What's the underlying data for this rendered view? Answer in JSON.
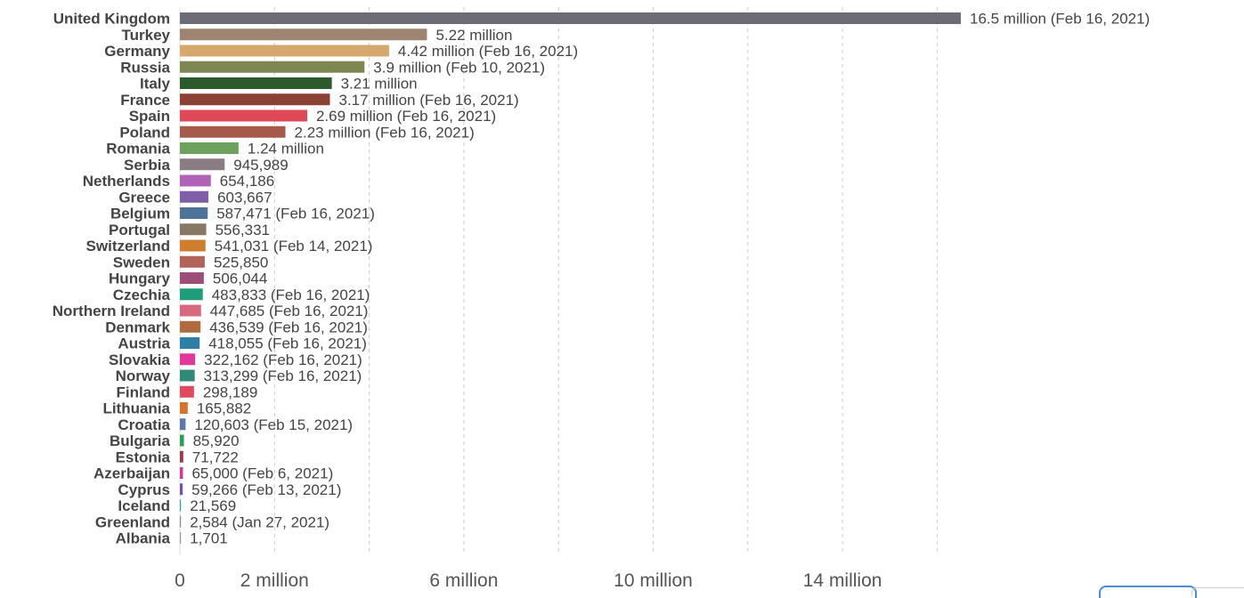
{
  "chart_data": {
    "type": "bar",
    "orientation": "horizontal",
    "xlim": [
      0,
      16500000
    ],
    "grid": true,
    "x_ticks": [
      {
        "value": 0,
        "label": "0"
      },
      {
        "value": 2000000,
        "label": "2 million"
      },
      {
        "value": 6000000,
        "label": "6 million"
      },
      {
        "value": 10000000,
        "label": "10 million"
      },
      {
        "value": 14000000,
        "label": "14 million"
      }
    ],
    "gridline_values": [
      2000000,
      4000000,
      6000000,
      8000000,
      10000000,
      12000000,
      14000000,
      16000000
    ],
    "bars": [
      {
        "category": "United Kingdom",
        "value": 16500000,
        "label": "16.5 million (Feb 16, 2021)",
        "color": "#6b6c75"
      },
      {
        "category": "Turkey",
        "value": 5220000,
        "label": "5.22 million",
        "color": "#9c8470"
      },
      {
        "category": "Germany",
        "value": 4420000,
        "label": "4.42 million (Feb 16, 2021)",
        "color": "#d6a86e"
      },
      {
        "category": "Russia",
        "value": 3900000,
        "label": "3.9 million (Feb 10, 2021)",
        "color": "#7c8751"
      },
      {
        "category": "Italy",
        "value": 3210000,
        "label": "3.21 million",
        "color": "#2b5b2c"
      },
      {
        "category": "France",
        "value": 3170000,
        "label": "3.17 million (Feb 16, 2021)",
        "color": "#8c4135"
      },
      {
        "category": "Spain",
        "value": 2690000,
        "label": "2.69 million (Feb 16, 2021)",
        "color": "#e04757"
      },
      {
        "category": "Poland",
        "value": 2230000,
        "label": "2.23 million (Feb 16, 2021)",
        "color": "#a65a4c"
      },
      {
        "category": "Romania",
        "value": 1240000,
        "label": "1.24 million",
        "color": "#6ea15d"
      },
      {
        "category": "Serbia",
        "value": 945989,
        "label": "945,989",
        "color": "#8b7c83"
      },
      {
        "category": "Netherlands",
        "value": 654186,
        "label": "654,186",
        "color": "#b061b8"
      },
      {
        "category": "Greece",
        "value": 603667,
        "label": "603,667",
        "color": "#7f5fa8"
      },
      {
        "category": "Belgium",
        "value": 587471,
        "label": "587,471 (Feb 16, 2021)",
        "color": "#4e7398"
      },
      {
        "category": "Portugal",
        "value": 556331,
        "label": "556,331",
        "color": "#867865"
      },
      {
        "category": "Switzerland",
        "value": 541031,
        "label": "541,031 (Feb 14, 2021)",
        "color": "#cf7e2e"
      },
      {
        "category": "Sweden",
        "value": 525850,
        "label": "525,850",
        "color": "#b1645a"
      },
      {
        "category": "Hungary",
        "value": 506044,
        "label": "506,044",
        "color": "#9c4e78"
      },
      {
        "category": "Czechia",
        "value": 483833,
        "label": "483,833 (Feb 16, 2021)",
        "color": "#1f9c79"
      },
      {
        "category": "Northern Ireland",
        "value": 447685,
        "label": "447,685 (Feb 16, 2021)",
        "color": "#d86a80"
      },
      {
        "category": "Denmark",
        "value": 436539,
        "label": "436,539 (Feb 16, 2021)",
        "color": "#b06a3e"
      },
      {
        "category": "Austria",
        "value": 418055,
        "label": "418,055 (Feb 16, 2021)",
        "color": "#2d7fa6"
      },
      {
        "category": "Slovakia",
        "value": 322162,
        "label": "322,162 (Feb 16, 2021)",
        "color": "#e0399a"
      },
      {
        "category": "Norway",
        "value": 313299,
        "label": "313,299 (Feb 16, 2021)",
        "color": "#2f8a7a"
      },
      {
        "category": "Finland",
        "value": 298189,
        "label": "298,189",
        "color": "#e04a5c"
      },
      {
        "category": "Lithuania",
        "value": 165882,
        "label": "165,882",
        "color": "#d9732c"
      },
      {
        "category": "Croatia",
        "value": 120603,
        "label": "120,603 (Feb 15, 2021)",
        "color": "#5a76b0"
      },
      {
        "category": "Bulgaria",
        "value": 85920,
        "label": "85,920",
        "color": "#28a05a"
      },
      {
        "category": "Estonia",
        "value": 71722,
        "label": "71,722",
        "color": "#9c3a4c"
      },
      {
        "category": "Azerbaijan",
        "value": 65000,
        "label": "65,000 (Feb 6, 2021)",
        "color": "#d43a8c"
      },
      {
        "category": "Cyprus",
        "value": 59266,
        "label": "59,266 (Feb 13, 2021)",
        "color": "#7a4fb0"
      },
      {
        "category": "Iceland",
        "value": 21569,
        "label": "21,569",
        "color": "#2aa6a0"
      },
      {
        "category": "Greenland",
        "value": 2584,
        "label": "2,584 (Jan 27, 2021)",
        "color": "#8c8c8c"
      },
      {
        "category": "Albania",
        "value": 1701,
        "label": "1,701",
        "color": "#999999"
      }
    ]
  }
}
